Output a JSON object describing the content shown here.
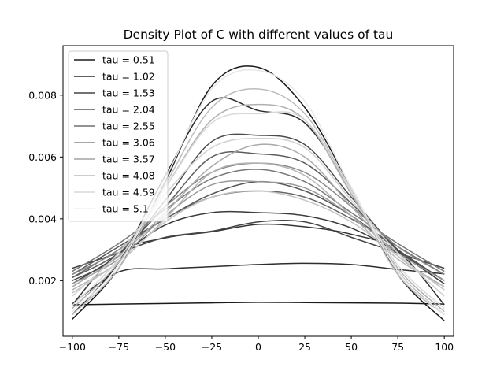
{
  "chart_data": {
    "type": "line",
    "title": "Density Plot of C with different values of tau",
    "xlabel": "",
    "ylabel": "",
    "xlim": [
      -105,
      105
    ],
    "ylim": [
      0.0002,
      0.0096
    ],
    "xticks": [
      -100,
      -75,
      -50,
      -25,
      0,
      25,
      50,
      75,
      100
    ],
    "xtick_labels": [
      "−100",
      "−75",
      "−50",
      "−25",
      "0",
      "25",
      "50",
      "75",
      "100"
    ],
    "yticks": [
      0.002,
      0.004,
      0.006,
      0.008
    ],
    "ytick_labels": [
      "0.002",
      "0.004",
      "0.006",
      "0.008"
    ],
    "grid": false,
    "legend_position": "top-left",
    "legend": [
      "tau = 0.51",
      "tau = 1.02",
      "tau = 1.53",
      "tau = 2.04",
      "tau = 2.55",
      "tau = 3.06",
      "tau = 3.57",
      "tau = 4.08",
      "tau = 4.59",
      "tau = 5.1"
    ],
    "legend_colors": [
      "#1a1a1a",
      "#2e2e2e",
      "#434343",
      "#585858",
      "#6e6e6e",
      "#8a8a8a",
      "#a3a3a3",
      "#bcbcbc",
      "#d8d8d8",
      "#f0f0f0"
    ],
    "x": [
      -100,
      -75,
      -50,
      -25,
      0,
      25,
      50,
      75,
      100
    ],
    "series": [
      {
        "color": "#1a1a1a",
        "values": [
          0.00122,
          0.00124,
          0.00126,
          0.00128,
          0.0013,
          0.00129,
          0.00128,
          0.00127,
          0.00124
        ]
      },
      {
        "color": "#2e2e2e",
        "values": [
          0.00125,
          0.00228,
          0.00238,
          0.00245,
          0.00252,
          0.00256,
          0.00252,
          0.00236,
          0.00222
        ]
      },
      {
        "color": "#333333",
        "values": [
          0.00122,
          0.0029,
          0.00338,
          0.00358,
          0.00382,
          0.00374,
          0.0035,
          0.00295,
          0.00122
        ]
      },
      {
        "color": "#444444",
        "values": [
          0.0024,
          0.0029,
          0.0034,
          0.0036,
          0.0039,
          0.0039,
          0.0034,
          0.0029,
          0.0024
        ]
      },
      {
        "color": "#3a3a3a",
        "values": [
          0.0019,
          0.0028,
          0.0038,
          0.0042,
          0.0042,
          0.0041,
          0.0037,
          0.0029,
          0.0019
        ]
      },
      {
        "color": "#555555",
        "values": [
          0.0022,
          0.0031,
          0.004,
          0.0048,
          0.0052,
          0.0049,
          0.0041,
          0.003,
          0.002
        ]
      },
      {
        "color": "#666666",
        "values": [
          0.0021,
          0.003,
          0.004,
          0.0047,
          0.0049,
          0.0047,
          0.004,
          0.0031,
          0.0022
        ]
      },
      {
        "color": "#777777",
        "values": [
          0.0023,
          0.0032,
          0.0043,
          0.0053,
          0.0056,
          0.0052,
          0.0042,
          0.0032,
          0.0023
        ]
      },
      {
        "color": "#5e5e5e",
        "values": [
          0.0021,
          0.0029,
          0.0044,
          0.006,
          0.0061,
          0.0058,
          0.0045,
          0.003,
          0.002
        ]
      },
      {
        "color": "#4b4b4b",
        "values": [
          0.002,
          0.0028,
          0.0046,
          0.0065,
          0.0067,
          0.0064,
          0.0047,
          0.003,
          0.002
        ]
      },
      {
        "color": "#8a8a8a",
        "values": [
          0.0022,
          0.003,
          0.0044,
          0.0055,
          0.0058,
          0.0055,
          0.0044,
          0.0031,
          0.0022
        ]
      },
      {
        "color": "#999999",
        "values": [
          0.0019,
          0.0027,
          0.0041,
          0.0051,
          0.0052,
          0.005,
          0.0041,
          0.0029,
          0.002
        ]
      },
      {
        "color": "#aaaaaa",
        "values": [
          0.0018,
          0.0028,
          0.0042,
          0.0057,
          0.0064,
          0.006,
          0.0044,
          0.0028,
          0.0018
        ]
      },
      {
        "color": "#b5b5b5",
        "values": [
          0.0017,
          0.0026,
          0.004,
          0.0055,
          0.0058,
          0.0054,
          0.0041,
          0.0027,
          0.0018
        ]
      },
      {
        "color": "#c4c4c4",
        "values": [
          0.0016,
          0.0026,
          0.0039,
          0.0047,
          0.0049,
          0.0046,
          0.0039,
          0.0028,
          0.0017
        ]
      },
      {
        "color": "#1a1a1a",
        "values": [
          0.00075,
          0.0024,
          0.0052,
          0.0083,
          0.0089,
          0.0076,
          0.005,
          0.0022,
          0.0007
        ]
      },
      {
        "color": "#2a2a2a",
        "values": [
          0.0009,
          0.0026,
          0.0054,
          0.0078,
          0.0075,
          0.0071,
          0.0049,
          0.0023,
          0.0009
        ]
      },
      {
        "color": "#bcbcbc",
        "values": [
          0.0009,
          0.0024,
          0.0051,
          0.0076,
          0.0082,
          0.0074,
          0.0049,
          0.0022,
          0.0009
        ]
      },
      {
        "color": "#b0b0b0",
        "values": [
          0.0011,
          0.0026,
          0.005,
          0.0072,
          0.0077,
          0.0072,
          0.0048,
          0.0024,
          0.001
        ]
      },
      {
        "color": "#d8d8d8",
        "values": [
          0.0012,
          0.0027,
          0.005,
          0.0071,
          0.0074,
          0.0072,
          0.0049,
          0.0025,
          0.0011
        ]
      },
      {
        "color": "#e8e8e8",
        "values": [
          0.001,
          0.0025,
          0.0053,
          0.0082,
          0.0088,
          0.0078,
          0.005,
          0.0023,
          0.0009
        ]
      },
      {
        "color": "#d0d0d0",
        "values": [
          0.0015,
          0.0029,
          0.0048,
          0.0063,
          0.0066,
          0.0063,
          0.0046,
          0.0029,
          0.0015
        ]
      }
    ]
  }
}
